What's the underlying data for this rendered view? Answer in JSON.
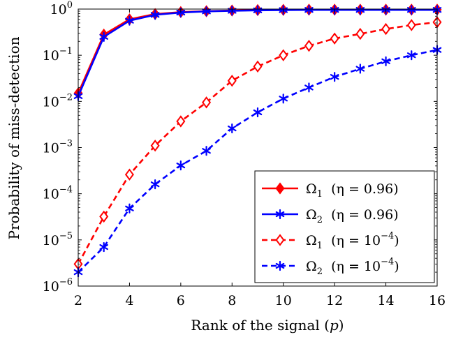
{
  "chart_data": {
    "type": "line",
    "xlabel": "Rank of the signal (p)",
    "ylabel": "Probability of miss-detection",
    "xlim": [
      2,
      16
    ],
    "ylim": [
      1e-06,
      1
    ],
    "yscale": "log",
    "grid": false,
    "legend_position": "bottom-right",
    "x_ticks": [
      "2",
      "4",
      "6",
      "8",
      "10",
      "12",
      "14",
      "16"
    ],
    "y_ticks": [
      {
        "base": "10",
        "exp": "0",
        "value": 1
      },
      {
        "base": "10",
        "exp": "−1",
        "value": 0.1
      },
      {
        "base": "10",
        "exp": "−2",
        "value": 0.01
      },
      {
        "base": "10",
        "exp": "−3",
        "value": 0.001
      },
      {
        "base": "10",
        "exp": "−4",
        "value": 0.0001
      },
      {
        "base": "10",
        "exp": "−5",
        "value": 1e-05
      },
      {
        "base": "10",
        "exp": "−6",
        "value": 1e-06
      }
    ],
    "x": [
      2,
      3,
      4,
      5,
      6,
      7,
      8,
      9,
      10,
      11,
      12,
      13,
      14,
      15,
      16
    ],
    "series": [
      {
        "name": "Ω1 (η = 0.96)",
        "name_parts": {
          "sym": "Ω",
          "sub": "1",
          "cond": "(η = 0.96)",
          "sup": ""
        },
        "color": "#ff0000",
        "dashed": false,
        "marker": "diamond-filled",
        "values": [
          0.015,
          0.28,
          0.6,
          0.78,
          0.86,
          0.9,
          0.93,
          0.95,
          0.96,
          0.97,
          0.97,
          0.97,
          0.97,
          0.97,
          0.97
        ]
      },
      {
        "name": "Ω2 (η = 0.96)",
        "name_parts": {
          "sym": "Ω",
          "sub": "2",
          "cond": "(η = 0.96)",
          "sup": ""
        },
        "color": "#0000ff",
        "dashed": false,
        "marker": "asterisk",
        "values": [
          0.013,
          0.25,
          0.56,
          0.75,
          0.84,
          0.89,
          0.92,
          0.94,
          0.95,
          0.96,
          0.96,
          0.96,
          0.96,
          0.96,
          0.96
        ]
      },
      {
        "name": "Ω1 (η = 10^−4)",
        "name_parts": {
          "sym": "Ω",
          "sub": "1",
          "cond": "(η = 10",
          "sup": "−4",
          "close": ")"
        },
        "color": "#ff0000",
        "dashed": true,
        "marker": "diamond-open",
        "values": [
          3e-06,
          3.2e-05,
          0.00026,
          0.0011,
          0.0037,
          0.0095,
          0.028,
          0.057,
          0.1,
          0.16,
          0.23,
          0.29,
          0.37,
          0.45,
          0.52
        ]
      },
      {
        "name": "Ω2 (η = 10^−4)",
        "name_parts": {
          "sym": "Ω",
          "sub": "2",
          "cond": "(η = 10",
          "sup": "−4",
          "close": ")"
        },
        "color": "#0000ff",
        "dashed": true,
        "marker": "asterisk",
        "values": [
          2e-06,
          7e-06,
          4.8e-05,
          0.00016,
          0.00041,
          0.00085,
          0.0026,
          0.0058,
          0.0115,
          0.02,
          0.034,
          0.051,
          0.074,
          0.1,
          0.13
        ]
      }
    ]
  }
}
